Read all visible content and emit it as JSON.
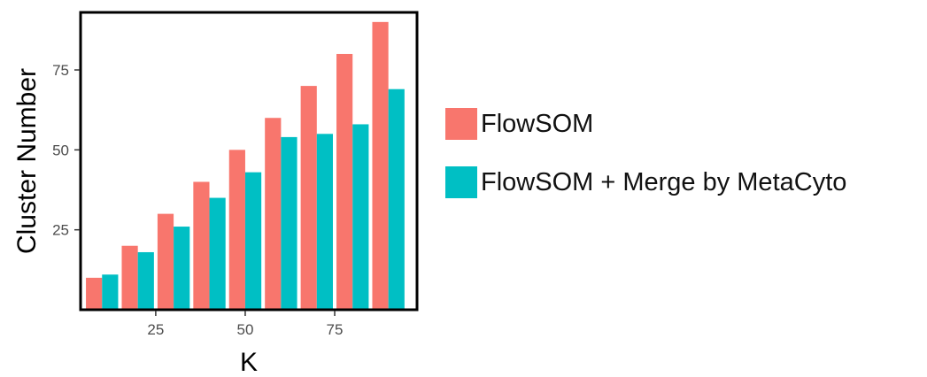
{
  "chart_data": {
    "type": "bar",
    "title": "",
    "xlabel": "K",
    "ylabel": "Cluster Number",
    "x": [
      10,
      20,
      30,
      40,
      50,
      60,
      70,
      80,
      90
    ],
    "xticks": [
      25,
      50,
      75
    ],
    "yticks": [
      25,
      50,
      75
    ],
    "xlim": [
      4,
      98
    ],
    "ylim": [
      0,
      93
    ],
    "grid": false,
    "legend_position": "right",
    "series": [
      {
        "name": "FlowSOM",
        "color": "#F8766D",
        "values": [
          10,
          20,
          30,
          40,
          50,
          60,
          70,
          80,
          90
        ]
      },
      {
        "name": "FlowSOM + Merge by MetaCyto",
        "color": "#00BFC4",
        "values": [
          11,
          18,
          26,
          35,
          43,
          54,
          55,
          58,
          69
        ]
      }
    ]
  }
}
